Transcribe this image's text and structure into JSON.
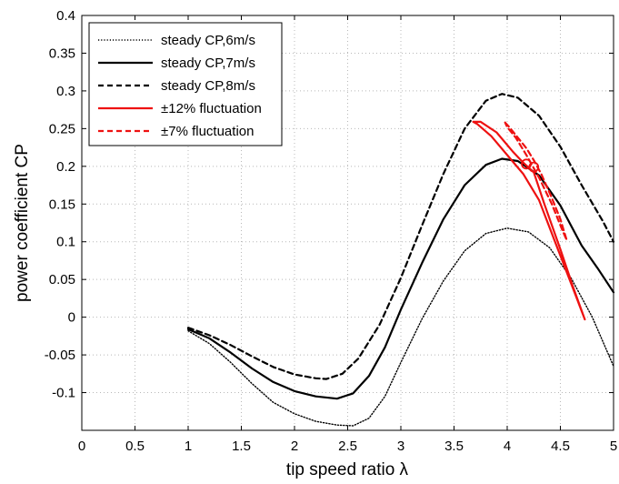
{
  "chart_data": {
    "type": "line",
    "xlabel": "tip speed ratio λ",
    "ylabel": "power coefficient CP",
    "xlim": [
      0,
      5
    ],
    "ylim": [
      -0.15,
      0.4
    ],
    "x_ticks": [
      "0",
      "0.5",
      "1",
      "1.5",
      "2",
      "2.5",
      "3",
      "3.5",
      "4",
      "4.5",
      "5"
    ],
    "y_ticks": [
      "-0.1",
      "-0.05",
      "0",
      "0.05",
      "0.1",
      "0.15",
      "0.2",
      "0.25",
      "0.3",
      "0.35",
      "0.4"
    ],
    "grid": true,
    "legend_position": "top-left",
    "series": [
      {
        "name": "steady CP,6m/s",
        "color": "#000000",
        "style": "dotted",
        "points": [
          [
            1.0,
            -0.018
          ],
          [
            1.2,
            -0.035
          ],
          [
            1.4,
            -0.06
          ],
          [
            1.6,
            -0.088
          ],
          [
            1.8,
            -0.113
          ],
          [
            2.0,
            -0.128
          ],
          [
            2.2,
            -0.138
          ],
          [
            2.4,
            -0.143
          ],
          [
            2.55,
            -0.144
          ],
          [
            2.7,
            -0.134
          ],
          [
            2.85,
            -0.105
          ],
          [
            3.0,
            -0.06
          ],
          [
            3.2,
            -0.002
          ],
          [
            3.4,
            0.048
          ],
          [
            3.6,
            0.088
          ],
          [
            3.8,
            0.111
          ],
          [
            4.0,
            0.118
          ],
          [
            4.2,
            0.113
          ],
          [
            4.4,
            0.092
          ],
          [
            4.6,
            0.052
          ],
          [
            4.8,
            0.0
          ],
          [
            5.0,
            -0.065
          ]
        ]
      },
      {
        "name": "steady CP,7m/s",
        "color": "#000000",
        "style": "solid",
        "points": [
          [
            1.0,
            -0.016
          ],
          [
            1.2,
            -0.028
          ],
          [
            1.4,
            -0.047
          ],
          [
            1.6,
            -0.068
          ],
          [
            1.8,
            -0.086
          ],
          [
            2.0,
            -0.098
          ],
          [
            2.2,
            -0.105
          ],
          [
            2.4,
            -0.108
          ],
          [
            2.55,
            -0.101
          ],
          [
            2.7,
            -0.078
          ],
          [
            2.85,
            -0.04
          ],
          [
            3.0,
            0.01
          ],
          [
            3.2,
            0.072
          ],
          [
            3.4,
            0.13
          ],
          [
            3.6,
            0.175
          ],
          [
            3.8,
            0.202
          ],
          [
            3.95,
            0.21
          ],
          [
            4.1,
            0.207
          ],
          [
            4.3,
            0.188
          ],
          [
            4.5,
            0.148
          ],
          [
            4.7,
            0.095
          ],
          [
            4.85,
            0.065
          ],
          [
            5.0,
            0.033
          ]
        ]
      },
      {
        "name": "steady CP,8m/s",
        "color": "#000000",
        "style": "dashed",
        "points": [
          [
            1.0,
            -0.014
          ],
          [
            1.2,
            -0.024
          ],
          [
            1.4,
            -0.037
          ],
          [
            1.6,
            -0.052
          ],
          [
            1.8,
            -0.066
          ],
          [
            2.0,
            -0.076
          ],
          [
            2.2,
            -0.081
          ],
          [
            2.3,
            -0.082
          ],
          [
            2.45,
            -0.075
          ],
          [
            2.6,
            -0.055
          ],
          [
            2.8,
            -0.01
          ],
          [
            3.0,
            0.052
          ],
          [
            3.2,
            0.122
          ],
          [
            3.4,
            0.19
          ],
          [
            3.6,
            0.25
          ],
          [
            3.8,
            0.287
          ],
          [
            3.95,
            0.296
          ],
          [
            4.1,
            0.291
          ],
          [
            4.3,
            0.267
          ],
          [
            4.5,
            0.226
          ],
          [
            4.7,
            0.175
          ],
          [
            4.9,
            0.127
          ],
          [
            5.0,
            0.1
          ]
        ]
      },
      {
        "name": "±12% fluctuation",
        "color": "#ee1111",
        "style": "solid",
        "points": [
          [
            3.68,
            0.259
          ],
          [
            3.75,
            0.259
          ],
          [
            3.9,
            0.245
          ],
          [
            4.05,
            0.22
          ],
          [
            4.15,
            0.205
          ],
          [
            4.25,
            0.192
          ],
          [
            4.35,
            0.15
          ],
          [
            4.5,
            0.09
          ],
          [
            4.62,
            0.04
          ],
          [
            4.73,
            -0.003
          ],
          [
            4.6,
            0.045
          ],
          [
            4.45,
            0.1
          ],
          [
            4.3,
            0.155
          ],
          [
            4.15,
            0.19
          ],
          [
            4.0,
            0.215
          ],
          [
            3.85,
            0.24
          ],
          [
            3.72,
            0.256
          ],
          [
            3.68,
            0.259
          ]
        ]
      },
      {
        "name": "±7% fluctuation",
        "color": "#ee1111",
        "style": "dashed",
        "points": [
          [
            3.98,
            0.258
          ],
          [
            4.02,
            0.252
          ],
          [
            4.1,
            0.238
          ],
          [
            4.18,
            0.224
          ],
          [
            4.25,
            0.208
          ],
          [
            4.32,
            0.19
          ],
          [
            4.42,
            0.158
          ],
          [
            4.5,
            0.13
          ],
          [
            4.56,
            0.102
          ],
          [
            4.52,
            0.115
          ],
          [
            4.42,
            0.15
          ],
          [
            4.3,
            0.185
          ],
          [
            4.18,
            0.215
          ],
          [
            4.08,
            0.238
          ],
          [
            4.0,
            0.252
          ],
          [
            3.98,
            0.258
          ]
        ]
      }
    ],
    "markers": [
      {
        "x": 4.18,
        "y": 0.203,
        "color": "#ee1111"
      },
      {
        "x": 4.25,
        "y": 0.199,
        "color": "#ee1111"
      }
    ]
  }
}
